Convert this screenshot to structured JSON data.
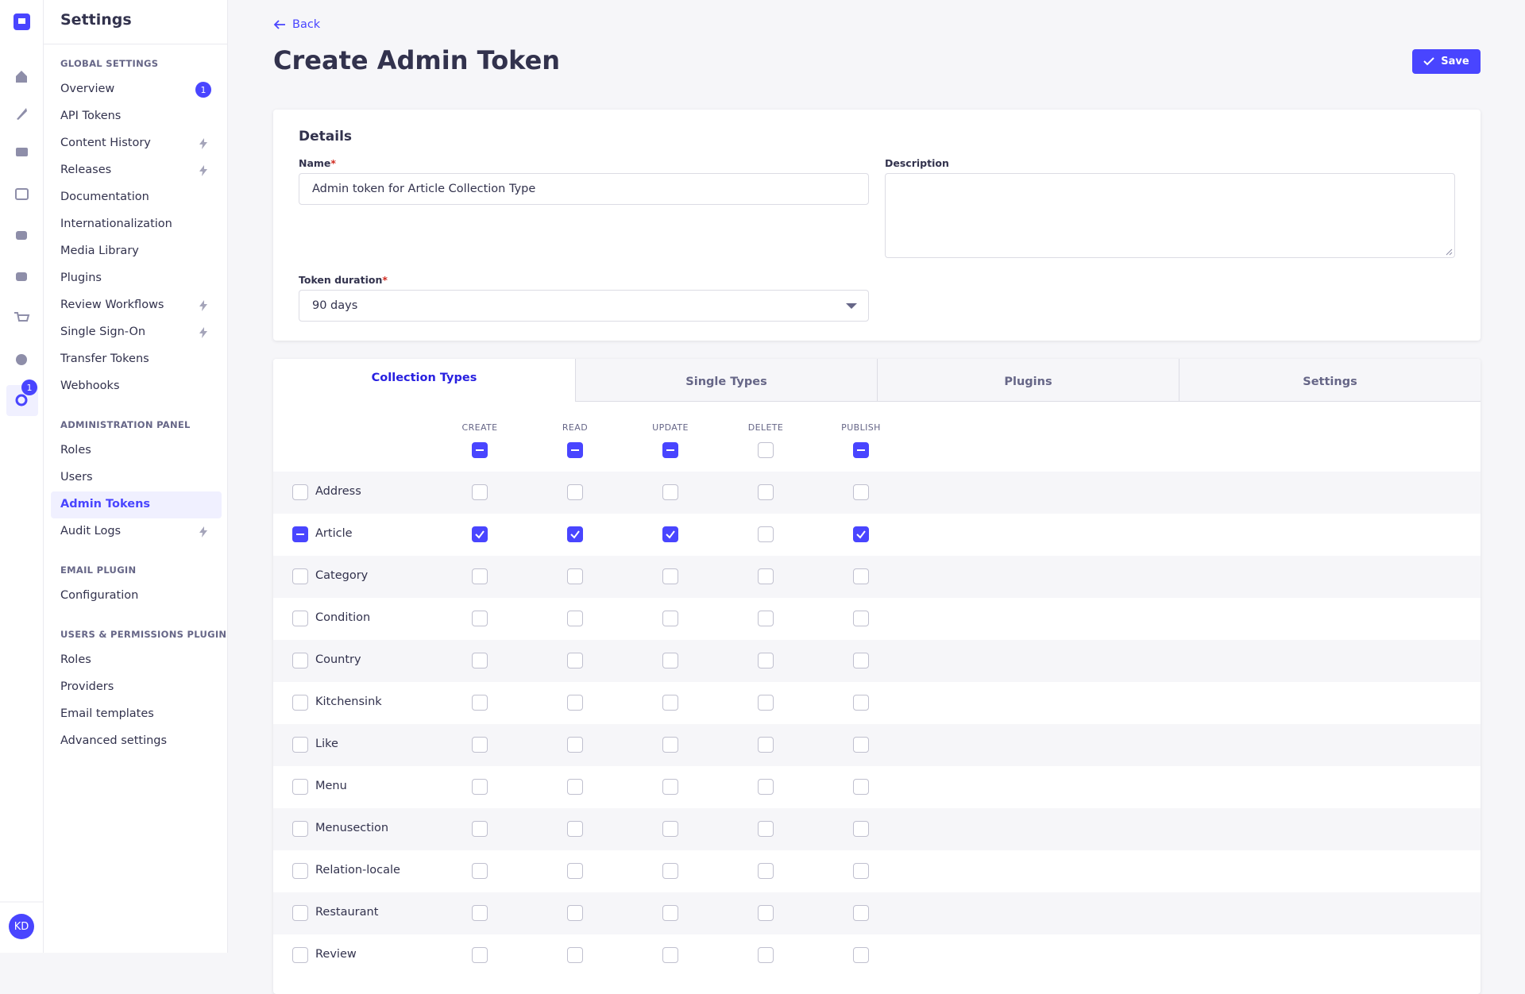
{
  "nav": {
    "settings_badge": "1",
    "avatar": "KD"
  },
  "sidebar": {
    "title": "Settings",
    "sections": [
      {
        "title": "GLOBAL SETTINGS",
        "items": [
          {
            "label": "Overview",
            "badge": "1"
          },
          {
            "label": "API Tokens"
          },
          {
            "label": "Content History",
            "upgrade": true
          },
          {
            "label": "Releases",
            "upgrade": true
          },
          {
            "label": "Documentation"
          },
          {
            "label": "Internationalization"
          },
          {
            "label": "Media Library"
          },
          {
            "label": "Plugins"
          },
          {
            "label": "Review Workflows",
            "upgrade": true
          },
          {
            "label": "Single Sign-On",
            "upgrade": true
          },
          {
            "label": "Transfer Tokens"
          },
          {
            "label": "Webhooks"
          }
        ]
      },
      {
        "title": "ADMINISTRATION PANEL",
        "items": [
          {
            "label": "Roles"
          },
          {
            "label": "Users"
          },
          {
            "label": "Admin Tokens",
            "active": true
          },
          {
            "label": "Audit Logs",
            "upgrade": true
          }
        ]
      },
      {
        "title": "EMAIL PLUGIN",
        "items": [
          {
            "label": "Configuration"
          }
        ]
      },
      {
        "title": "USERS & PERMISSIONS PLUGIN",
        "items": [
          {
            "label": "Roles"
          },
          {
            "label": "Providers"
          },
          {
            "label": "Email templates"
          },
          {
            "label": "Advanced settings"
          }
        ]
      }
    ]
  },
  "header": {
    "back": "Back",
    "title": "Create Admin Token",
    "save": "Save"
  },
  "details": {
    "title": "Details",
    "required_mark": "*",
    "name_label": "Name",
    "name_value": "Admin token for Article Collection Type",
    "description_label": "Description",
    "duration_label": "Token duration",
    "duration_value": "90 days"
  },
  "permissions": {
    "tabs": [
      "Collection Types",
      "Single Types",
      "Plugins",
      "Settings"
    ],
    "active_tab": 0,
    "columns": [
      "CREATE",
      "READ",
      "UPDATE",
      "DELETE",
      "PUBLISH"
    ],
    "column_states": [
      "indeterminate",
      "indeterminate",
      "indeterminate",
      "unchecked",
      "indeterminate"
    ],
    "rows": [
      {
        "name": "Address",
        "state": "unchecked",
        "cells": [
          "unchecked",
          "unchecked",
          "unchecked",
          "unchecked",
          "unchecked"
        ]
      },
      {
        "name": "Article",
        "state": "indeterminate",
        "cells": [
          "checked",
          "checked",
          "checked",
          "unchecked",
          "checked"
        ]
      },
      {
        "name": "Category",
        "state": "unchecked",
        "cells": [
          "unchecked",
          "unchecked",
          "unchecked",
          "unchecked",
          "unchecked"
        ]
      },
      {
        "name": "Condition",
        "state": "unchecked",
        "cells": [
          "unchecked",
          "unchecked",
          "unchecked",
          "unchecked",
          "unchecked"
        ]
      },
      {
        "name": "Country",
        "state": "unchecked",
        "cells": [
          "unchecked",
          "unchecked",
          "unchecked",
          "unchecked",
          "unchecked"
        ]
      },
      {
        "name": "Kitchensink",
        "state": "unchecked",
        "cells": [
          "unchecked",
          "unchecked",
          "unchecked",
          "unchecked",
          "unchecked"
        ]
      },
      {
        "name": "Like",
        "state": "unchecked",
        "cells": [
          "unchecked",
          "unchecked",
          "unchecked",
          "unchecked",
          "unchecked"
        ]
      },
      {
        "name": "Menu",
        "state": "unchecked",
        "cells": [
          "unchecked",
          "unchecked",
          "unchecked",
          "unchecked",
          "unchecked"
        ]
      },
      {
        "name": "Menusection",
        "state": "unchecked",
        "cells": [
          "unchecked",
          "unchecked",
          "unchecked",
          "unchecked",
          "unchecked"
        ]
      },
      {
        "name": "Relation-locale",
        "state": "unchecked",
        "cells": [
          "unchecked",
          "unchecked",
          "unchecked",
          "unchecked",
          "unchecked"
        ]
      },
      {
        "name": "Restaurant",
        "state": "unchecked",
        "cells": [
          "unchecked",
          "unchecked",
          "unchecked",
          "unchecked",
          "unchecked"
        ]
      },
      {
        "name": "Review",
        "state": "unchecked",
        "cells": [
          "unchecked",
          "unchecked",
          "unchecked",
          "unchecked",
          "unchecked"
        ]
      }
    ]
  }
}
